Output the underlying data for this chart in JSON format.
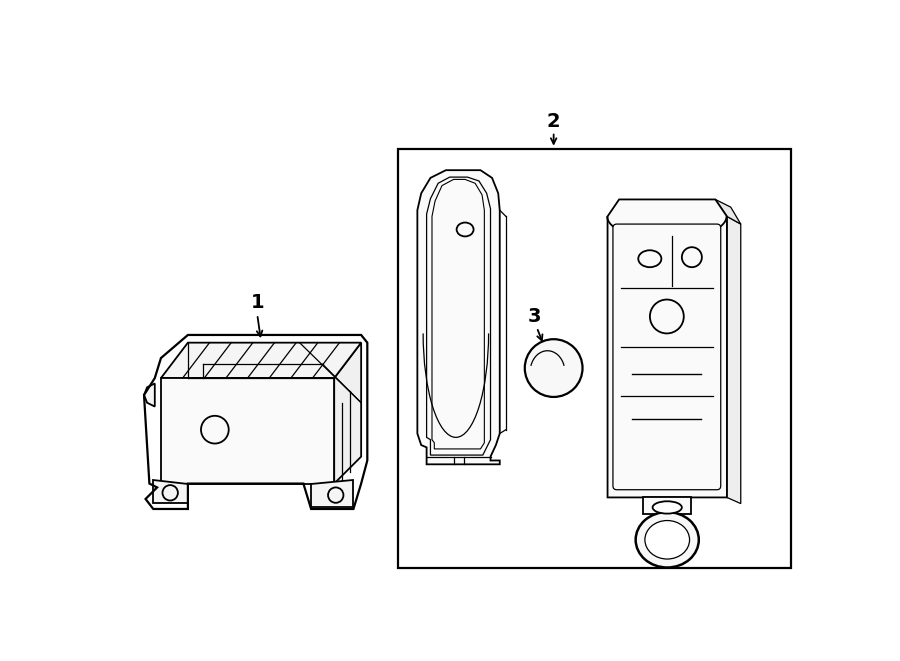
{
  "background_color": "#ffffff",
  "line_color": "#000000",
  "lw": 1.3,
  "label1": "1",
  "label2": "2",
  "label3": "3"
}
